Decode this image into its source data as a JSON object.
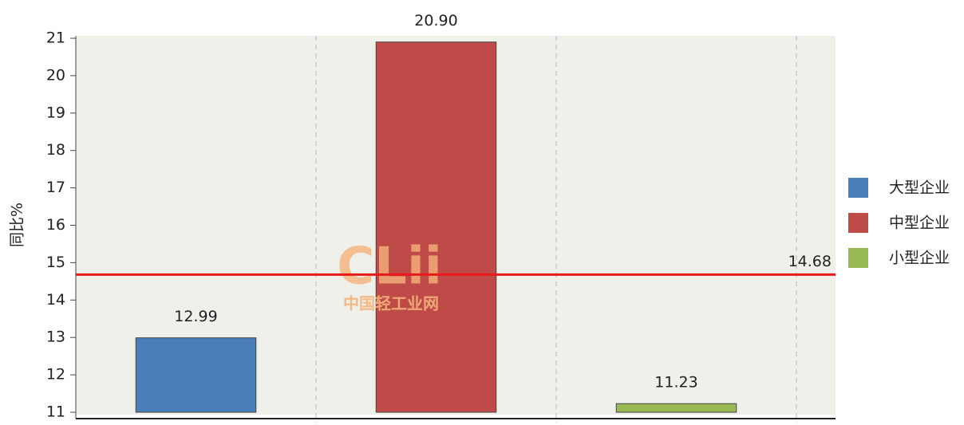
{
  "chart_data": {
    "type": "bar",
    "y_label": "同比%",
    "categories": [
      null,
      null,
      null
    ],
    "series": [
      {
        "name": "大型企业",
        "color": "#4a7ebb",
        "values": [
          12.99,
          null,
          null
        ]
      },
      {
        "name": "中型企业",
        "color": "#be4b48",
        "values": [
          null,
          20.9,
          null
        ],
        "value_labels": [
          null,
          "20.90",
          null
        ]
      },
      {
        "name": "小型企业",
        "color": "#98b954",
        "values": [
          null,
          null,
          11.23
        ]
      }
    ],
    "reference_line": {
      "value": 14.68,
      "color": "#e8191a"
    },
    "watermark": [
      "CLii",
      "中国轻工业网"
    ],
    "ylim": [
      11,
      21
    ],
    "yticks": [
      11,
      12,
      13,
      14,
      15,
      16,
      17,
      18,
      19,
      20,
      21
    ],
    "grid": true,
    "legend": "right"
  }
}
